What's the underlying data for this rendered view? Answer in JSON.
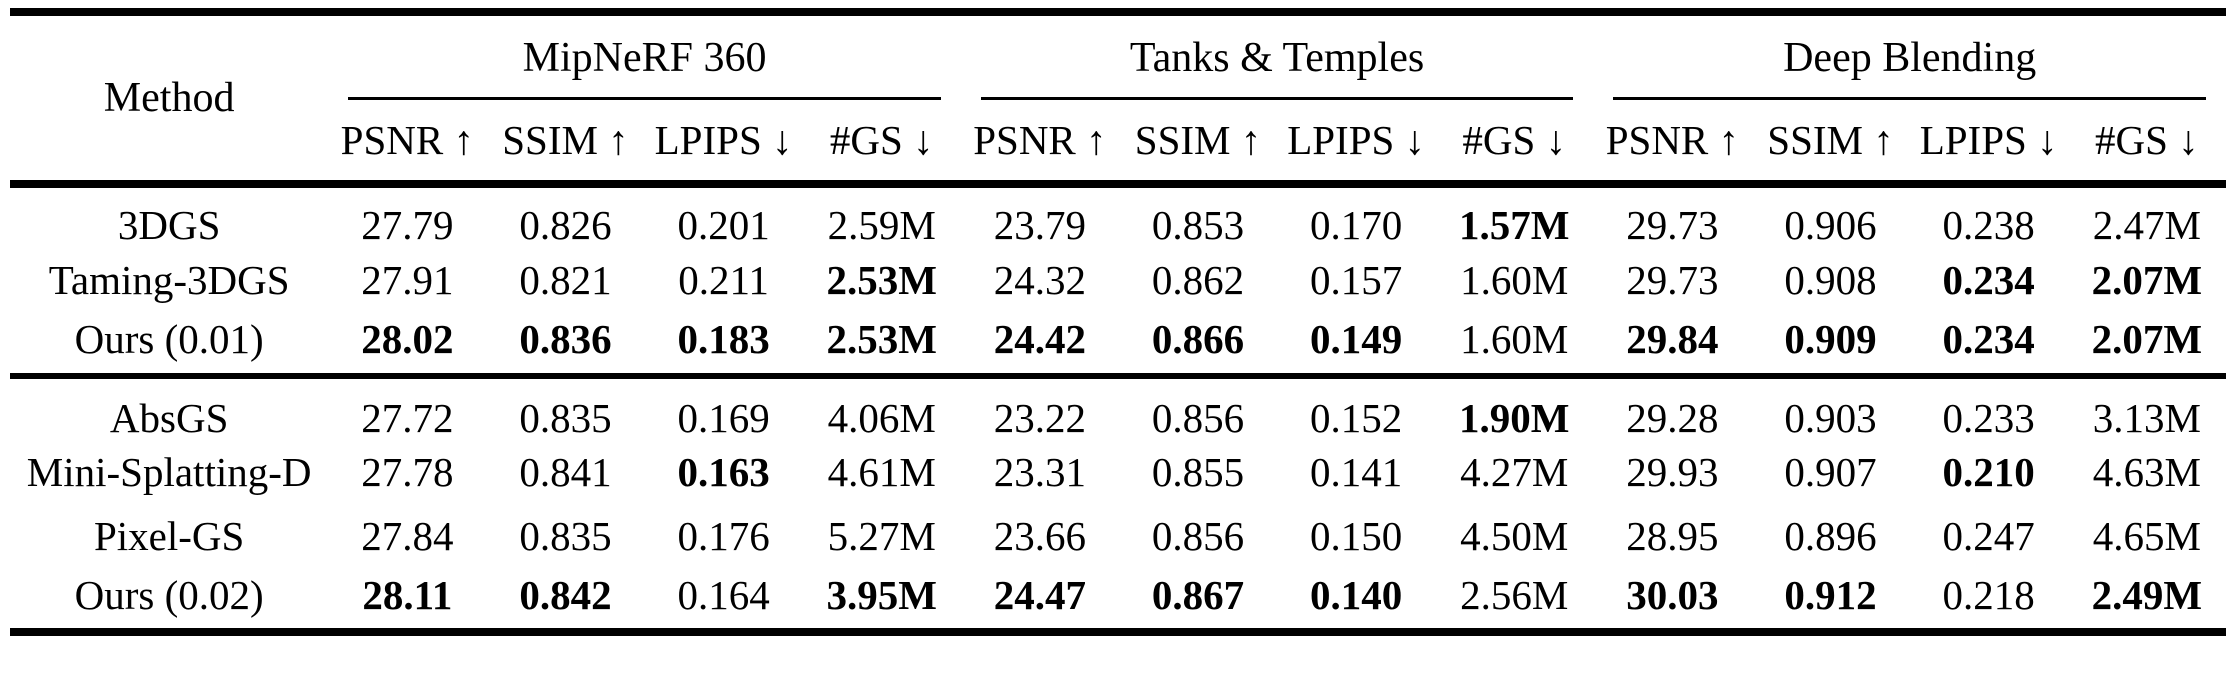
{
  "colors": {
    "background": "#ffffff",
    "text": "#000000",
    "rule": "#000000"
  },
  "table": {
    "method_header": "Method",
    "groups": [
      "MipNeRF 360",
      "Tanks & Temples",
      "Deep Blending"
    ],
    "metrics": [
      "PSNR ↑",
      "SSIM ↑",
      "LPIPS ↓",
      "#GS ↓"
    ],
    "sections": [
      {
        "rows": [
          {
            "method": "3DGS",
            "values": [
              "27.79",
              "0.826",
              "0.201",
              "2.59M",
              "23.79",
              "0.853",
              "0.170",
              "1.57M",
              "29.73",
              "0.906",
              "0.238",
              "2.47M"
            ],
            "bold": [
              0,
              0,
              0,
              0,
              0,
              0,
              0,
              1,
              0,
              0,
              0,
              0
            ]
          },
          {
            "method": "Taming-3DGS",
            "values": [
              "27.91",
              "0.821",
              "0.211",
              "2.53M",
              "24.32",
              "0.862",
              "0.157",
              "1.60M",
              "29.73",
              "0.908",
              "0.234",
              "2.07M"
            ],
            "bold": [
              0,
              0,
              0,
              1,
              0,
              0,
              0,
              0,
              0,
              0,
              1,
              1
            ]
          },
          {
            "method": "Ours (0.01)",
            "values": [
              "28.02",
              "0.836",
              "0.183",
              "2.53M",
              "24.42",
              "0.866",
              "0.149",
              "1.60M",
              "29.84",
              "0.909",
              "0.234",
              "2.07M"
            ],
            "bold": [
              1,
              1,
              1,
              1,
              1,
              1,
              1,
              0,
              1,
              1,
              1,
              1
            ]
          }
        ]
      },
      {
        "rows": [
          {
            "method": "AbsGS",
            "values": [
              "27.72",
              "0.835",
              "0.169",
              "4.06M",
              "23.22",
              "0.856",
              "0.152",
              "1.90M",
              "29.28",
              "0.903",
              "0.233",
              "3.13M"
            ],
            "bold": [
              0,
              0,
              0,
              0,
              0,
              0,
              0,
              1,
              0,
              0,
              0,
              0
            ]
          },
          {
            "method": "Mini-Splatting-D",
            "values": [
              "27.78",
              "0.841",
              "0.163",
              "4.61M",
              "23.31",
              "0.855",
              "0.141",
              "4.27M",
              "29.93",
              "0.907",
              "0.210",
              "4.63M"
            ],
            "bold": [
              0,
              0,
              1,
              0,
              0,
              0,
              0,
              0,
              0,
              0,
              1,
              0
            ]
          },
          {
            "method": "Pixel-GS",
            "values": [
              "27.84",
              "0.835",
              "0.176",
              "5.27M",
              "23.66",
              "0.856",
              "0.150",
              "4.50M",
              "28.95",
              "0.896",
              "0.247",
              "4.65M"
            ],
            "bold": [
              0,
              0,
              0,
              0,
              0,
              0,
              0,
              0,
              0,
              0,
              0,
              0
            ]
          },
          {
            "method": "Ours (0.02)",
            "values": [
              "28.11",
              "0.842",
              "0.164",
              "3.95M",
              "24.47",
              "0.867",
              "0.140",
              "2.56M",
              "30.03",
              "0.912",
              "0.218",
              "2.49M"
            ],
            "bold": [
              1,
              1,
              0,
              1,
              1,
              1,
              1,
              0,
              1,
              1,
              0,
              1
            ]
          }
        ]
      }
    ]
  }
}
